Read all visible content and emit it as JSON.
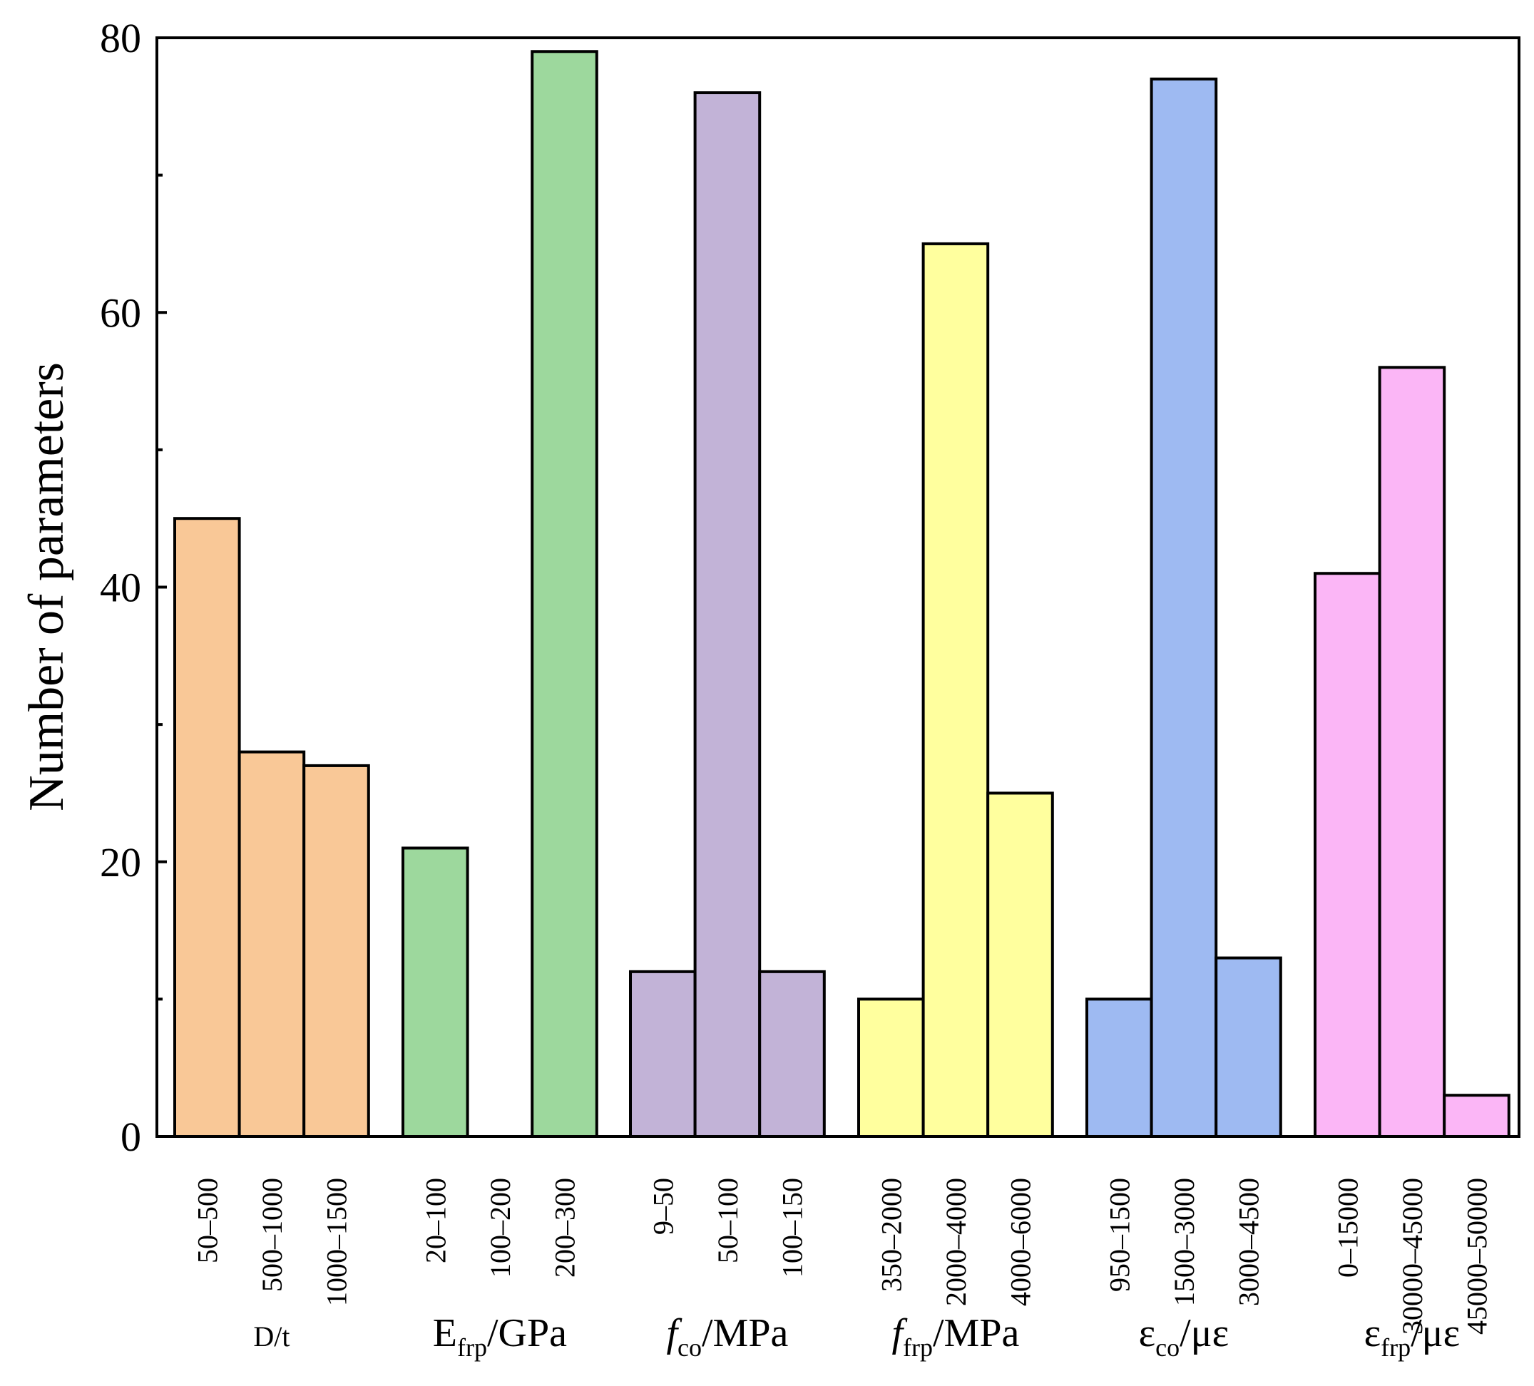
{
  "chart_data": {
    "type": "bar",
    "title": "",
    "xlabel": "",
    "ylabel": "Number of parameters",
    "ylim": [
      0,
      80
    ],
    "yticks_major": [
      0,
      20,
      40,
      60,
      80
    ],
    "yticks_minor": [
      10,
      30,
      50,
      70
    ],
    "grid": false,
    "groups": [
      {
        "label_main": "D/t",
        "label_sub": "",
        "label_tail": "",
        "italic": false,
        "small": true,
        "color": "#F9C897",
        "categories": [
          "50–500",
          "500–1000",
          "1000–1500"
        ],
        "values": [
          45,
          28,
          27
        ]
      },
      {
        "label_main": "E",
        "label_sub": "frp",
        "label_tail": "/GPa",
        "italic": false,
        "small": false,
        "color": "#9DD89D",
        "categories": [
          "20–100",
          "100–200",
          "200–300"
        ],
        "values": [
          21,
          0,
          79
        ]
      },
      {
        "label_main": "f",
        "label_sub": "co",
        "label_tail": "/MPa",
        "italic": true,
        "small": false,
        "color": "#C2B3D7",
        "categories": [
          "9–50",
          "50–100",
          "100–150"
        ],
        "values": [
          12,
          76,
          12
        ]
      },
      {
        "label_main": "f",
        "label_sub": "frp",
        "label_tail": "/MPa",
        "italic": true,
        "small": false,
        "color": "#FFFF9E",
        "categories": [
          "350–2000",
          "2000–4000",
          "4000–6000"
        ],
        "values": [
          10,
          65,
          25
        ]
      },
      {
        "label_main": "ε",
        "label_sub": "co",
        "label_tail": "/με",
        "italic": false,
        "small": false,
        "color": "#9EBAF2",
        "categories": [
          "950–1500",
          "1500–3000",
          "3000–4500"
        ],
        "values": [
          10,
          77,
          13
        ]
      },
      {
        "label_main": "ε",
        "label_sub": "frp",
        "label_tail": "/με",
        "italic": false,
        "small": false,
        "color": "#FBB6F6",
        "categories": [
          "0–15000",
          "30000–45000",
          "45000–50000"
        ],
        "values": [
          41,
          56,
          3
        ]
      }
    ]
  }
}
